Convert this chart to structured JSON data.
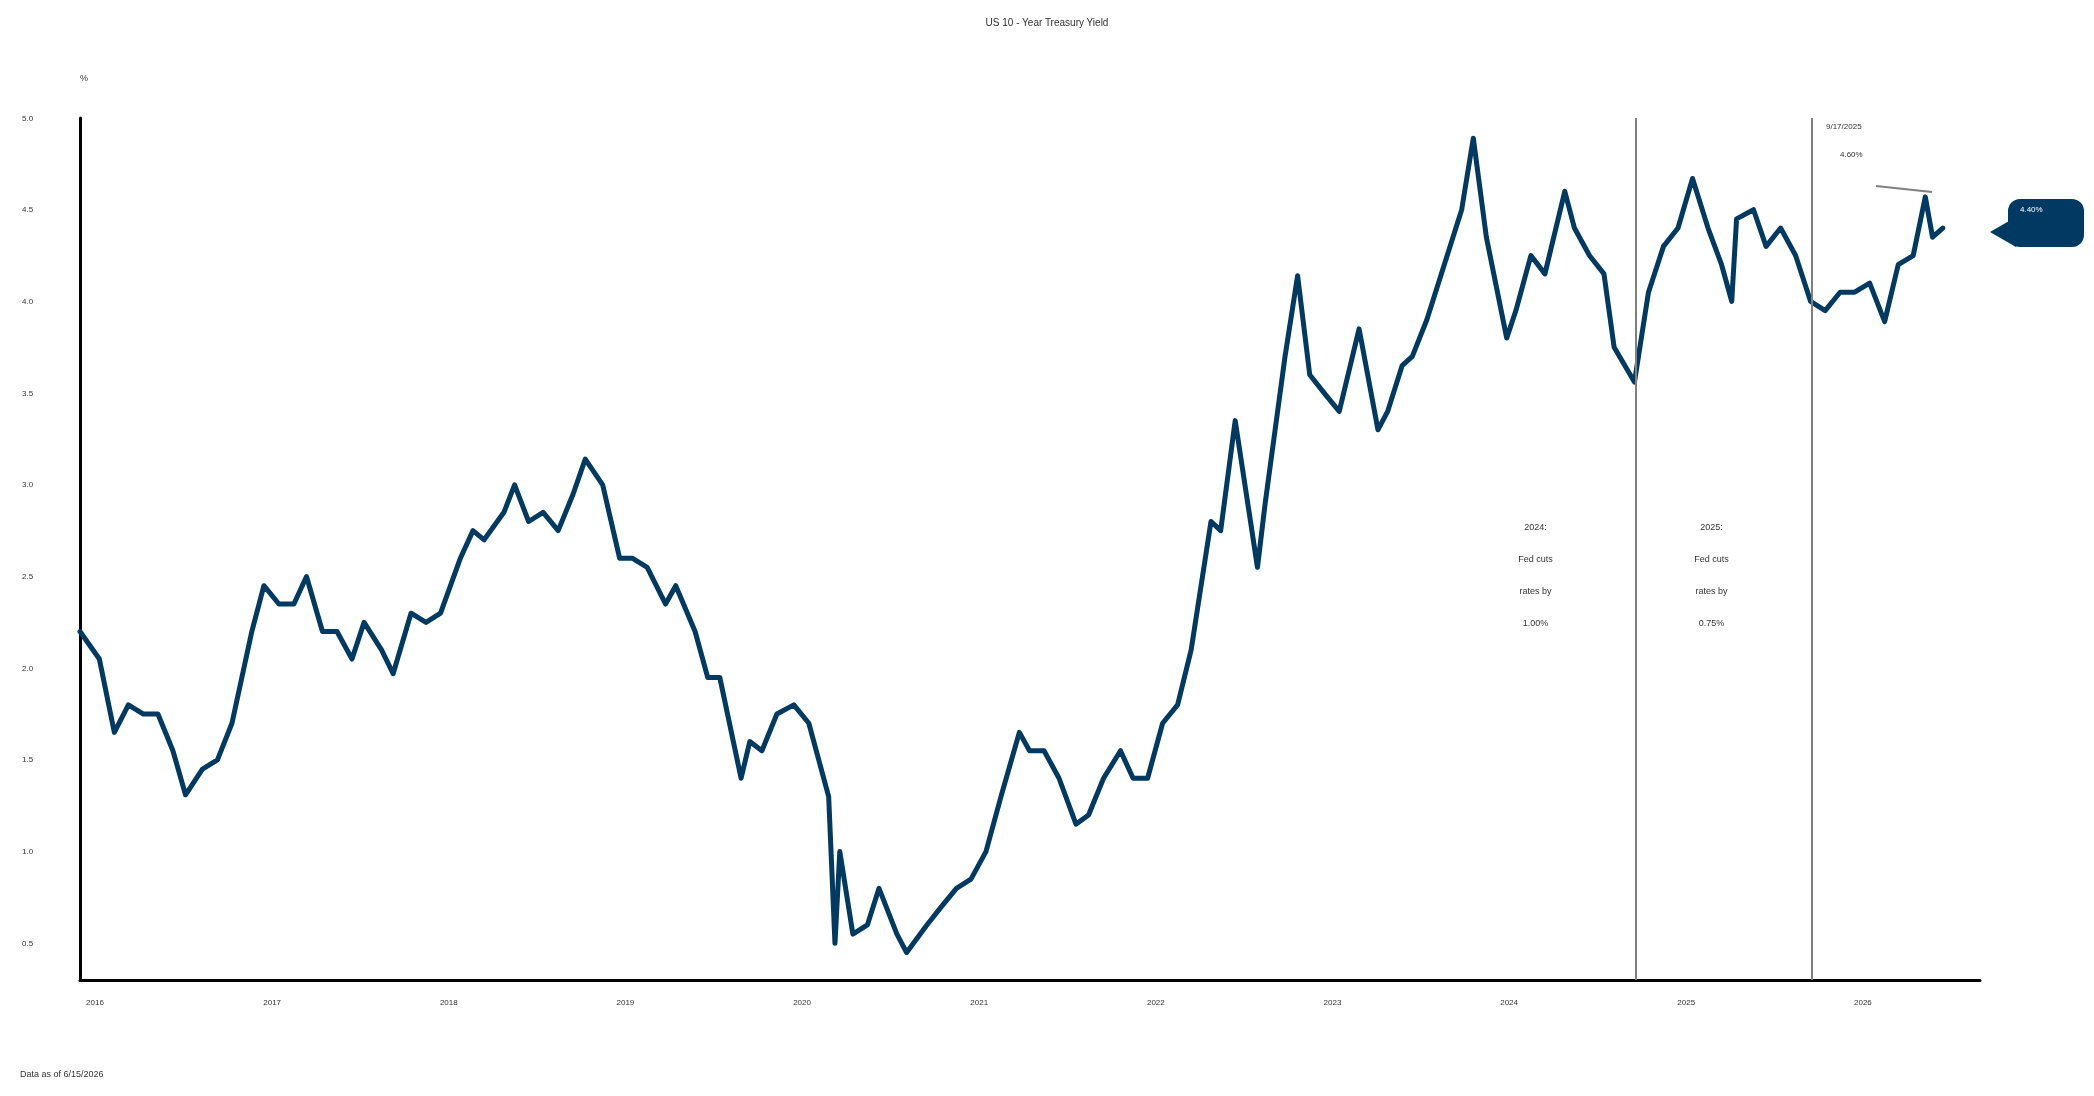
{
  "chart_data": {
    "type": "line",
    "title": "US 10 - Year Treasury Yield",
    "ylabel": "%",
    "x": [
      "2015-12-01",
      "2016-01-10",
      "2016-02-10",
      "2016-03-10",
      "2016-04-10",
      "2016-05-10",
      "2016-06-10",
      "2016-07-06",
      "2016-08-10",
      "2016-09-10",
      "2016-10-10",
      "2016-11-20",
      "2016-12-15",
      "2017-01-15",
      "2017-02-15",
      "2017-03-13",
      "2017-04-15",
      "2017-05-15",
      "2017-06-15",
      "2017-07-10",
      "2017-08-15",
      "2017-09-08",
      "2017-10-15",
      "2017-11-15",
      "2017-12-15",
      "2018-01-25",
      "2018-02-20",
      "2018-03-15",
      "2018-04-25",
      "2018-05-17",
      "2018-06-15",
      "2018-07-15",
      "2018-08-15",
      "2018-09-15",
      "2018-10-10",
      "2018-11-15",
      "2018-12-20",
      "2019-01-15",
      "2019-02-15",
      "2019-03-25",
      "2019-04-15",
      "2019-05-25",
      "2019-06-20",
      "2019-07-15",
      "2019-08-28",
      "2019-09-15",
      "2019-10-10",
      "2019-11-10",
      "2019-12-15",
      "2020-01-15",
      "2020-02-25",
      "2020-03-09",
      "2020-03-19",
      "2020-04-15",
      "2020-05-15",
      "2020-06-08",
      "2020-07-15",
      "2020-08-04",
      "2020-09-15",
      "2020-10-15",
      "2020-11-15",
      "2020-12-15",
      "2021-01-15",
      "2021-02-15",
      "2021-03-25",
      "2021-04-15",
      "2021-05-15",
      "2021-06-15",
      "2021-07-20",
      "2021-08-15",
      "2021-09-15",
      "2021-10-20",
      "2021-11-15",
      "2021-12-15",
      "2022-01-15",
      "2022-02-15",
      "2022-03-15",
      "2022-04-25",
      "2022-05-15",
      "2022-06-14",
      "2022-07-30",
      "2022-08-15",
      "2022-09-25",
      "2022-10-21",
      "2022-11-15",
      "2022-12-15",
      "2023-01-15",
      "2023-02-25",
      "2023-04-05",
      "2023-04-25",
      "2023-05-25",
      "2023-06-15",
      "2023-07-15",
      "2023-08-20",
      "2023-09-25",
      "2023-10-19",
      "2023-11-15",
      "2023-12-27",
      "2024-01-15",
      "2024-02-15",
      "2024-03-15",
      "2024-04-25",
      "2024-05-15",
      "2024-06-15",
      "2024-07-15",
      "2024-08-05",
      "2024-09-16",
      "2024-10-15",
      "2024-11-15",
      "2024-12-15",
      "2025-01-14",
      "2025-02-15",
      "2025-03-15",
      "2025-04-05",
      "2025-04-15",
      "2025-05-20",
      "2025-06-15",
      "2025-07-15",
      "2025-08-15",
      "2025-09-15",
      "2025-10-15",
      "2025-11-15",
      "2025-12-15",
      "2026-01-15",
      "2026-02-15",
      "2026-03-15",
      "2026-04-15",
      "2026-05-10",
      "2026-05-25",
      "2026-06-15"
    ],
    "series": [
      {
        "color": "#003a63",
        "values": [
          2.2,
          2.05,
          1.65,
          1.8,
          1.75,
          1.75,
          1.55,
          1.31,
          1.45,
          1.5,
          1.7,
          2.2,
          2.45,
          2.35,
          2.35,
          2.5,
          2.2,
          2.2,
          2.05,
          2.25,
          2.1,
          1.97,
          2.3,
          2.25,
          2.3,
          2.6,
          2.75,
          2.7,
          2.85,
          3.0,
          2.8,
          2.85,
          2.75,
          2.95,
          3.14,
          3.0,
          2.6,
          2.6,
          2.55,
          2.35,
          2.45,
          2.2,
          1.95,
          1.95,
          1.4,
          1.6,
          1.55,
          1.75,
          1.8,
          1.7,
          1.3,
          0.5,
          1.0,
          0.55,
          0.6,
          0.8,
          0.55,
          0.45,
          0.6,
          0.7,
          0.8,
          0.85,
          1.0,
          1.3,
          1.65,
          1.55,
          1.55,
          1.4,
          1.15,
          1.2,
          1.4,
          1.55,
          1.4,
          1.4,
          1.7,
          1.8,
          2.1,
          2.8,
          2.75,
          3.35,
          2.55,
          2.9,
          3.7,
          4.14,
          3.6,
          3.5,
          3.4,
          3.85,
          3.3,
          3.4,
          3.65,
          3.7,
          3.9,
          4.2,
          4.5,
          4.89,
          4.35,
          3.8,
          3.95,
          4.25,
          4.15,
          4.6,
          4.4,
          4.25,
          4.15,
          3.75,
          3.56,
          4.05,
          4.3,
          4.4,
          4.67,
          4.4,
          4.2,
          4.0,
          4.45,
          4.5,
          4.3,
          4.4,
          4.25,
          4.0,
          3.95,
          4.05,
          4.05,
          4.1,
          3.89,
          4.2,
          4.25,
          4.57,
          4.35,
          4.4
        ]
      }
    ],
    "xlim": [
      "2015-12-01",
      "2026-08-31"
    ],
    "xticks": [
      {
        "value": "2016-01-01",
        "label": "2016"
      },
      {
        "value": "2017-01-01",
        "label": "2017"
      },
      {
        "value": "2018-01-01",
        "label": "2018"
      },
      {
        "value": "2019-01-01",
        "label": "2019"
      },
      {
        "value": "2020-01-01",
        "label": "2020"
      },
      {
        "value": "2021-01-01",
        "label": "2021"
      },
      {
        "value": "2022-01-01",
        "label": "2022"
      },
      {
        "value": "2023-01-01",
        "label": "2023"
      },
      {
        "value": "2024-01-01",
        "label": "2024"
      },
      {
        "value": "2025-01-01",
        "label": "2025"
      },
      {
        "value": "2026-01-01",
        "label": "2026"
      }
    ],
    "ylim": [
      0.3,
      5.0
    ],
    "yticks": [
      {
        "value": 0.5,
        "label": "0.5"
      },
      {
        "value": 1,
        "label": "1.0"
      },
      {
        "value": 1.5,
        "label": "1.5"
      },
      {
        "value": 2,
        "label": "2.0"
      },
      {
        "value": 2.5,
        "label": "2.5"
      },
      {
        "value": 3,
        "label": "3.0"
      },
      {
        "value": 3.5,
        "label": "3.5"
      },
      {
        "value": 4,
        "label": "4.0"
      },
      {
        "value": 4.5,
        "label": "4.5"
      },
      {
        "value": 5,
        "label": "5.0"
      }
    ],
    "ref_lines": [
      {
        "axis": "x",
        "value": "2024-09-18",
        "label": "2024:\nFed cuts\nrates by\n1.00%",
        "color": "#808080"
      },
      {
        "axis": "x",
        "value": "2025-09-17",
        "label": "2025:\nFed cuts\nrates by\n0.75%",
        "color": "#808080"
      }
    ],
    "annotations": [
      "9/17/2025",
      "4.60%",
      "4.40%",
      "Data as of 6/15/2026"
    ],
    "grid": false,
    "marker": "none",
    "line_style": "solid"
  }
}
